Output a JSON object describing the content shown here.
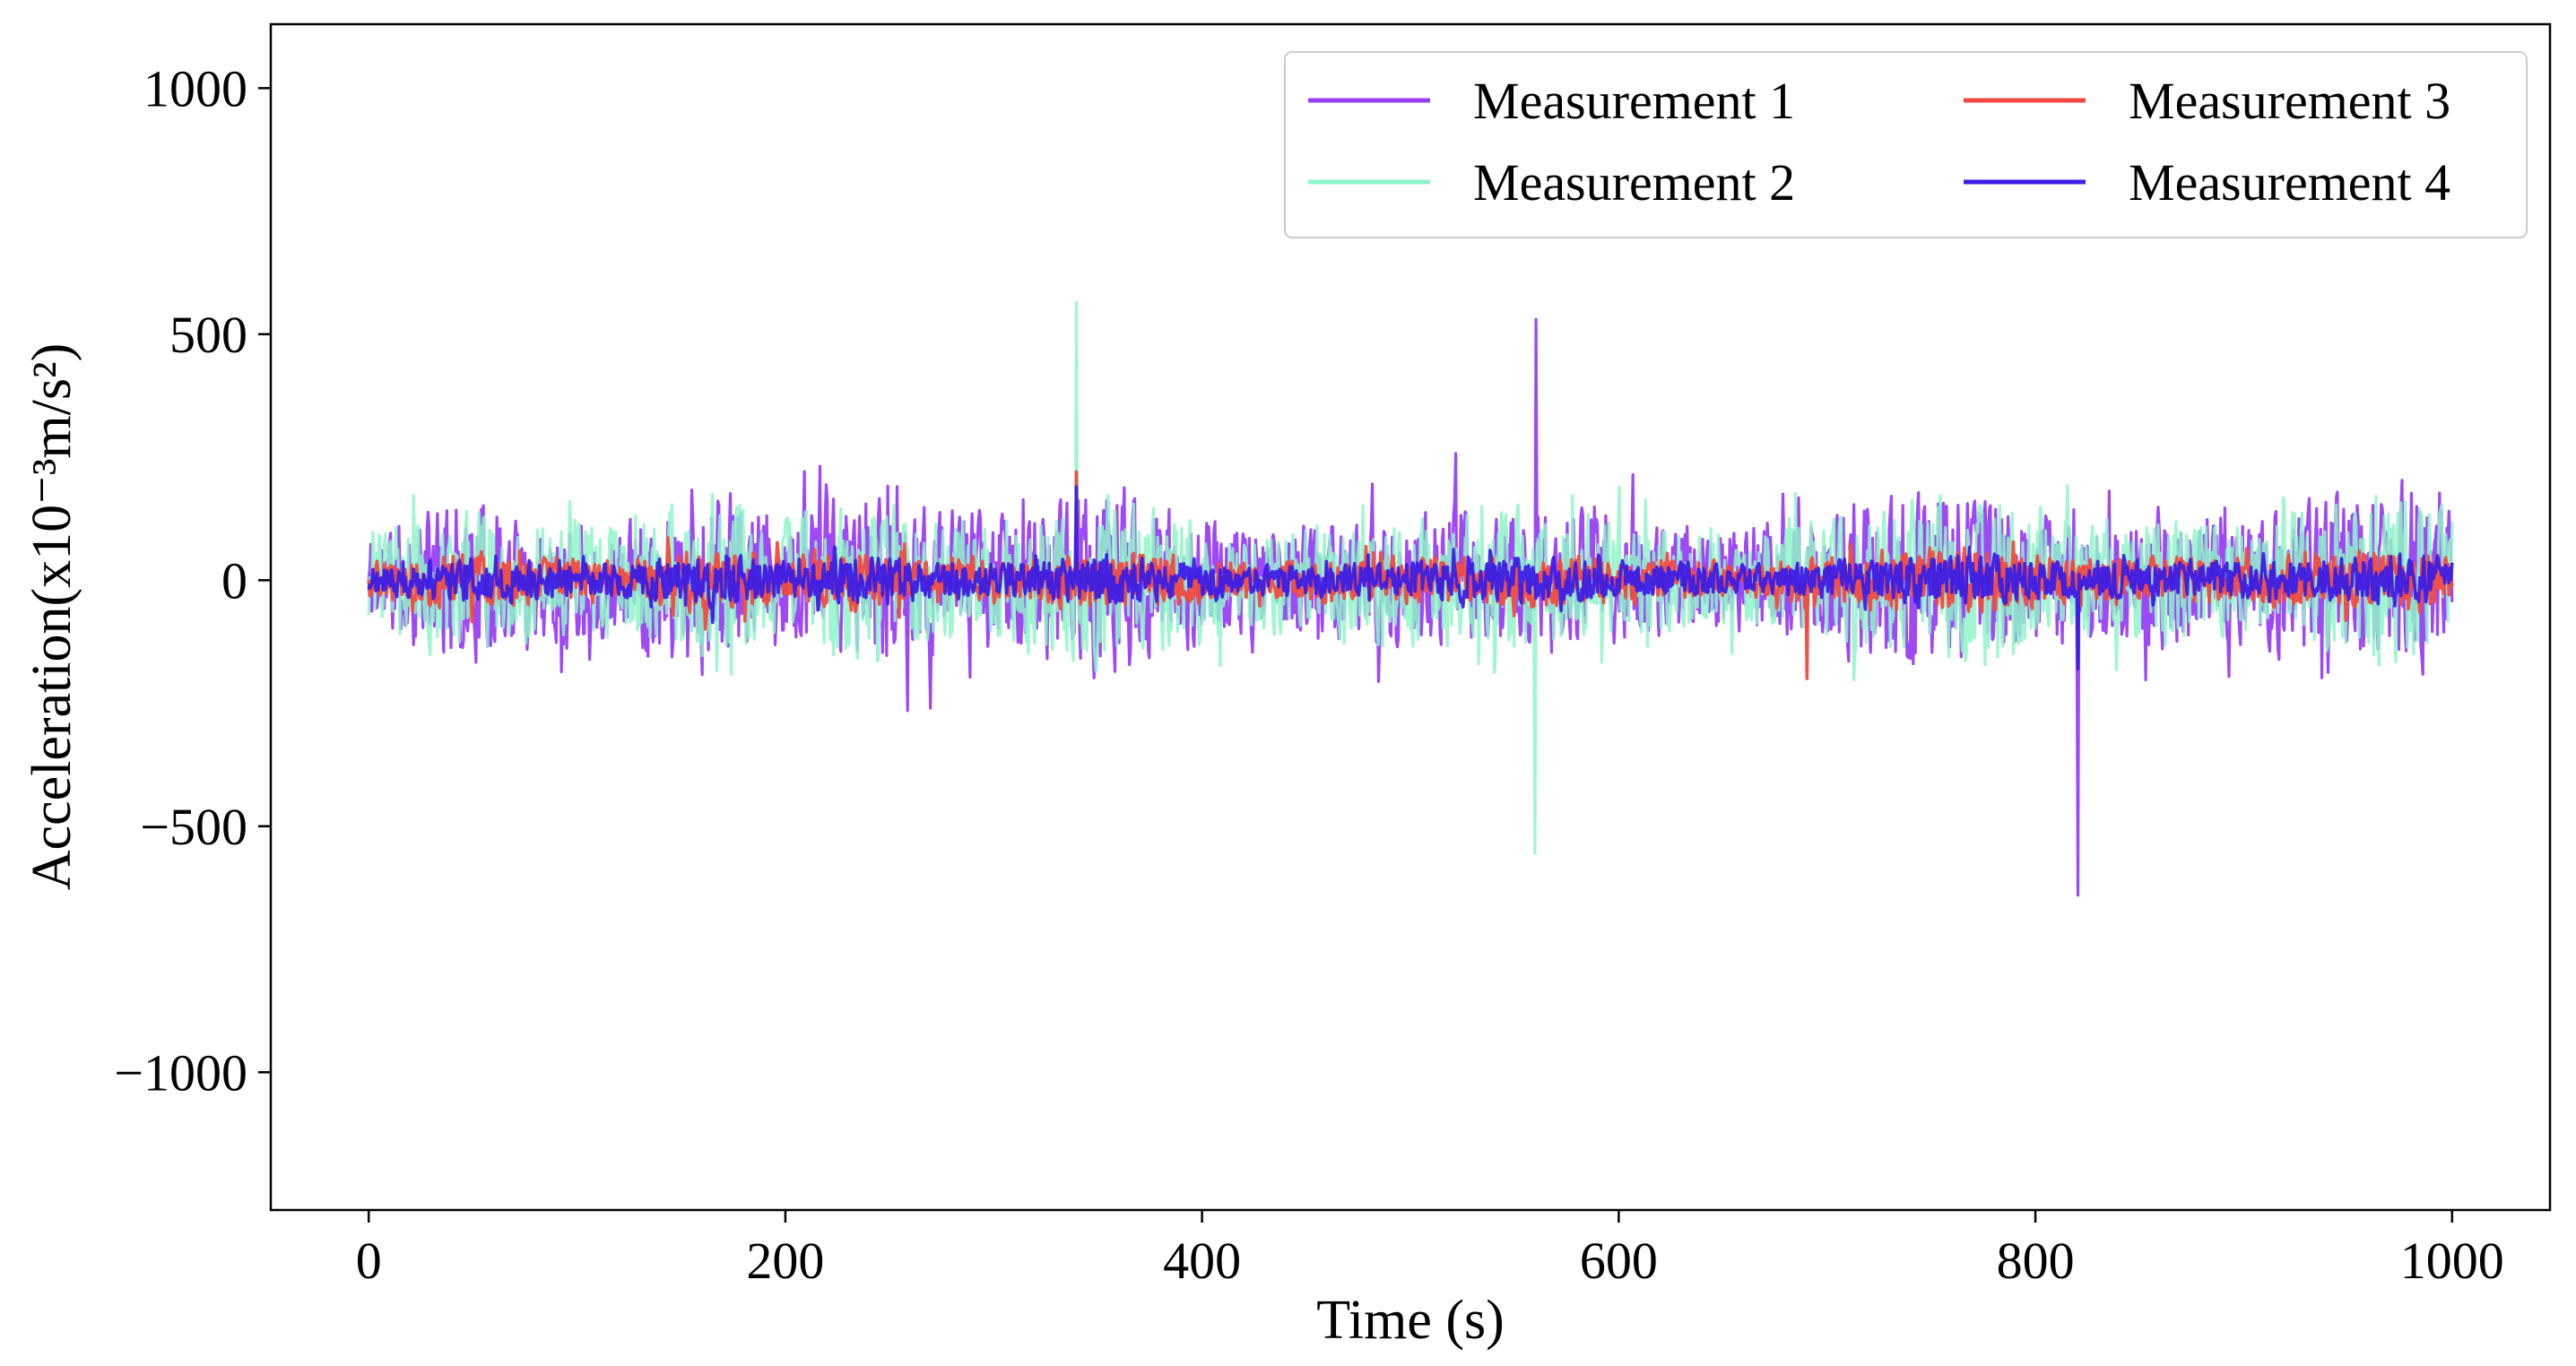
{
  "chart_data": {
    "type": "line",
    "title": "",
    "xlabel": "Time (s)",
    "ylabel": "Acceleration(x10⁻³m/s²)",
    "xlim": [
      -47,
      1047
    ],
    "ylim": [
      -1280,
      1130
    ],
    "x_ticks": [
      0,
      200,
      400,
      600,
      800,
      1000
    ],
    "x_tick_labels": [
      "0",
      "200",
      "400",
      "600",
      "800",
      "1000"
    ],
    "y_ticks": [
      -1000,
      -500,
      0,
      500,
      1000
    ],
    "y_tick_labels": [
      "−1000",
      "−500",
      "0",
      "500",
      "1000"
    ],
    "grid": false,
    "legend": {
      "placement": "top-right",
      "columns": 2
    },
    "x_range": [
      0,
      1000
    ],
    "samples": 2000,
    "envelope_knots": {
      "x": [
        0,
        40,
        80,
        120,
        160,
        200,
        240,
        280,
        320,
        350,
        380,
        420,
        460,
        500,
        540,
        580,
        620,
        660,
        700,
        740,
        780,
        820,
        860,
        900,
        940,
        980,
        1000
      ],
      "amp": [
        0.55,
        0.85,
        0.7,
        0.6,
        1.0,
        0.65,
        0.95,
        0.7,
        0.75,
        1.0,
        0.8,
        0.55,
        0.6,
        0.7,
        0.8,
        0.75,
        0.65,
        0.55,
        0.7,
        0.95,
        0.95,
        0.6,
        0.75,
        0.7,
        0.8,
        1.05,
        0.75
      ]
    },
    "series": [
      {
        "name": "Measurement 1",
        "color": "#9a3ef5",
        "peak_max": 530,
        "peak_min": -640,
        "typical_amplitude": 230,
        "seed": 11
      },
      {
        "name": "Measurement 2",
        "color": "#8ff5c8",
        "peak_max": 565,
        "peak_min": -555,
        "typical_amplitude": 210,
        "seed": 23
      },
      {
        "name": "Measurement 3",
        "color": "#f24a3f",
        "peak_max": 220,
        "peak_min": -200,
        "typical_amplitude": 80,
        "seed": 37
      },
      {
        "name": "Measurement 4",
        "color": "#3b1ee6",
        "peak_max": 190,
        "peak_min": -180,
        "typical_amplitude": 65,
        "seed": 51
      }
    ]
  }
}
